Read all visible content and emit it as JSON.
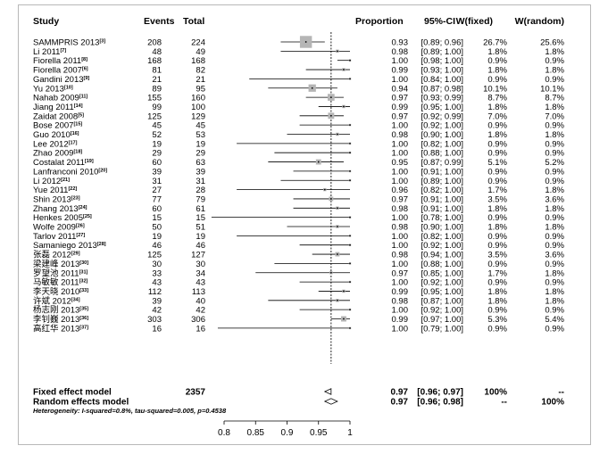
{
  "headers": {
    "study": "Study",
    "events": "Events",
    "total": "Total",
    "proportion": "Proportion",
    "ci": "95%-CI",
    "wfixed": "W(fixed)",
    "wrandom": "W(random)"
  },
  "chart_data": {
    "type": "forest",
    "xlim": [
      0.775,
      1.0
    ],
    "x_ticks": [
      0.8,
      0.85,
      0.9,
      0.95,
      1
    ],
    "x_tick_labels": [
      "0.8",
      "0.85",
      "0.9",
      "0.95",
      "1"
    ],
    "reference_line": 0.97,
    "studies": [
      {
        "name": "SAMMPRIS 2013",
        "ref": "[3]",
        "events": "208",
        "total": "224",
        "prop": 0.93,
        "lo": 0.89,
        "hi": 0.96,
        "prop_text": "0.93",
        "ci_text": "[0.89; 0.96]",
        "wf": "26.7%",
        "wr": "25.6%",
        "weight": 26.7
      },
      {
        "name": "Li 2011",
        "ref": "[7]",
        "events": "48",
        "total": "49",
        "prop": 0.98,
        "lo": 0.89,
        "hi": 1.0,
        "prop_text": "0.98",
        "ci_text": "[0.89; 1.00]",
        "wf": "1.8%",
        "wr": "1.8%",
        "weight": 1.8
      },
      {
        "name": "Fiorella 2011",
        "ref": "[8]",
        "events": "168",
        "total": "168",
        "prop": 1.0,
        "lo": 0.98,
        "hi": 1.0,
        "prop_text": "1.00",
        "ci_text": "[0.98; 1.00]",
        "wf": "0.9%",
        "wr": "0.9%",
        "weight": 0.9
      },
      {
        "name": "Fiorella 2007",
        "ref": "[6]",
        "events": "81",
        "total": "82",
        "prop": 0.99,
        "lo": 0.93,
        "hi": 1.0,
        "prop_text": "0.99",
        "ci_text": "[0.93; 1.00]",
        "wf": "1.8%",
        "wr": "1.8%",
        "weight": 1.8
      },
      {
        "name": "Gandini 2013",
        "ref": "[9]",
        "events": "21",
        "total": "21",
        "prop": 1.0,
        "lo": 0.84,
        "hi": 1.0,
        "prop_text": "1.00",
        "ci_text": "[0.84; 1.00]",
        "wf": "0.9%",
        "wr": "0.9%",
        "weight": 0.9
      },
      {
        "name": "Yu 2013",
        "ref": "[10]",
        "events": "89",
        "total": "95",
        "prop": 0.94,
        "lo": 0.87,
        "hi": 0.98,
        "prop_text": "0.94",
        "ci_text": "[0.87; 0.98]",
        "wf": "10.1%",
        "wr": "10.1%",
        "weight": 10.1
      },
      {
        "name": "Nahab 2009",
        "ref": "[11]",
        "events": "155",
        "total": "160",
        "prop": 0.97,
        "lo": 0.93,
        "hi": 0.99,
        "prop_text": "0.97",
        "ci_text": "[0.93; 0.99]",
        "wf": "8.7%",
        "wr": "8.7%",
        "weight": 8.7
      },
      {
        "name": "Jiang 2011",
        "ref": "[14]",
        "events": "99",
        "total": "100",
        "prop": 0.99,
        "lo": 0.95,
        "hi": 1.0,
        "prop_text": "0.99",
        "ci_text": "[0.95; 1.00]",
        "wf": "1.8%",
        "wr": "1.8%",
        "weight": 1.8
      },
      {
        "name": "Zaidat 2008",
        "ref": "[5]",
        "events": "125",
        "total": "129",
        "prop": 0.97,
        "lo": 0.92,
        "hi": 0.99,
        "prop_text": "0.97",
        "ci_text": "[0.92; 0.99]",
        "wf": "7.0%",
        "wr": "7.0%",
        "weight": 7.0
      },
      {
        "name": "Bose 2007",
        "ref": "[15]",
        "events": "45",
        "total": "45",
        "prop": 1.0,
        "lo": 0.92,
        "hi": 1.0,
        "prop_text": "1.00",
        "ci_text": "[0.92; 1.00]",
        "wf": "0.9%",
        "wr": "0.9%",
        "weight": 0.9
      },
      {
        "name": "Guo 2010",
        "ref": "[16]",
        "events": "52",
        "total": "53",
        "prop": 0.98,
        "lo": 0.9,
        "hi": 1.0,
        "prop_text": "0.98",
        "ci_text": "[0.90; 1.00]",
        "wf": "1.8%",
        "wr": "1.8%",
        "weight": 1.8
      },
      {
        "name": "Lee 2012",
        "ref": "[17]",
        "events": "19",
        "total": "19",
        "prop": 1.0,
        "lo": 0.82,
        "hi": 1.0,
        "prop_text": "1.00",
        "ci_text": "[0.82; 1.00]",
        "wf": "0.9%",
        "wr": "0.9%",
        "weight": 0.9
      },
      {
        "name": "Zhao 2009",
        "ref": "[18]",
        "events": "29",
        "total": "29",
        "prop": 1.0,
        "lo": 0.88,
        "hi": 1.0,
        "prop_text": "1.00",
        "ci_text": "[0.88; 1.00]",
        "wf": "0.9%",
        "wr": "0.9%",
        "weight": 0.9
      },
      {
        "name": "Costalat 2011",
        "ref": "[19]",
        "events": "60",
        "total": "63",
        "prop": 0.95,
        "lo": 0.87,
        "hi": 0.99,
        "prop_text": "0.95",
        "ci_text": "[0.87; 0.99]",
        "wf": "5.1%",
        "wr": "5.2%",
        "weight": 5.1
      },
      {
        "name": "Lanfranconi 2010",
        "ref": "[20]",
        "events": "39",
        "total": "39",
        "prop": 1.0,
        "lo": 0.91,
        "hi": 1.0,
        "prop_text": "1.00",
        "ci_text": "[0.91; 1.00]",
        "wf": "0.9%",
        "wr": "0.9%",
        "weight": 0.9
      },
      {
        "name": "Li 2012",
        "ref": "[21]",
        "events": "31",
        "total": "31",
        "prop": 1.0,
        "lo": 0.89,
        "hi": 1.0,
        "prop_text": "1.00",
        "ci_text": "[0.89; 1.00]",
        "wf": "0.9%",
        "wr": "0.9%",
        "weight": 0.9
      },
      {
        "name": "Yue 2011",
        "ref": "[22]",
        "events": "27",
        "total": "28",
        "prop": 0.96,
        "lo": 0.82,
        "hi": 1.0,
        "prop_text": "0.96",
        "ci_text": "[0.82; 1.00]",
        "wf": "1.7%",
        "wr": "1.8%",
        "weight": 1.7
      },
      {
        "name": "Shin 2013",
        "ref": "[23]",
        "events": "77",
        "total": "79",
        "prop": 0.97,
        "lo": 0.91,
        "hi": 1.0,
        "prop_text": "0.97",
        "ci_text": "[0.91; 1.00]",
        "wf": "3.5%",
        "wr": "3.6%",
        "weight": 3.5
      },
      {
        "name": "Zhang 2013",
        "ref": "[24]",
        "events": "60",
        "total": "61",
        "prop": 0.98,
        "lo": 0.91,
        "hi": 1.0,
        "prop_text": "0.98",
        "ci_text": "[0.91; 1.00]",
        "wf": "1.8%",
        "wr": "1.8%",
        "weight": 1.8
      },
      {
        "name": "Henkes 2005",
        "ref": "[25]",
        "events": "15",
        "total": "15",
        "prop": 1.0,
        "lo": 0.78,
        "hi": 1.0,
        "prop_text": "1.00",
        "ci_text": "[0.78; 1.00]",
        "wf": "0.9%",
        "wr": "0.9%",
        "weight": 0.9
      },
      {
        "name": "Wolfe 2009",
        "ref": "[26]",
        "events": "50",
        "total": "51",
        "prop": 0.98,
        "lo": 0.9,
        "hi": 1.0,
        "prop_text": "0.98",
        "ci_text": "[0.90; 1.00]",
        "wf": "1.8%",
        "wr": "1.8%",
        "weight": 1.8
      },
      {
        "name": "Tarlov 2011",
        "ref": "[27]",
        "events": "19",
        "total": "19",
        "prop": 1.0,
        "lo": 0.82,
        "hi": 1.0,
        "prop_text": "1.00",
        "ci_text": "[0.82; 1.00]",
        "wf": "0.9%",
        "wr": "0.9%",
        "weight": 0.9
      },
      {
        "name": "Samaniego 2013",
        "ref": "[28]",
        "events": "46",
        "total": "46",
        "prop": 1.0,
        "lo": 0.92,
        "hi": 1.0,
        "prop_text": "1.00",
        "ci_text": "[0.92; 1.00]",
        "wf": "0.9%",
        "wr": "0.9%",
        "weight": 0.9
      },
      {
        "name": "张磊 2012",
        "ref": "[29]",
        "events": "125",
        "total": "127",
        "prop": 0.98,
        "lo": 0.94,
        "hi": 1.0,
        "prop_text": "0.98",
        "ci_text": "[0.94; 1.00]",
        "wf": "3.5%",
        "wr": "3.6%",
        "weight": 3.5
      },
      {
        "name": "梁建峰 2013",
        "ref": "[30]",
        "events": "30",
        "total": "30",
        "prop": 1.0,
        "lo": 0.88,
        "hi": 1.0,
        "prop_text": "1.00",
        "ci_text": "[0.88; 1.00]",
        "wf": "0.9%",
        "wr": "0.9%",
        "weight": 0.9
      },
      {
        "name": "罗望池 2011",
        "ref": "[31]",
        "events": "33",
        "total": "34",
        "prop": 0.97,
        "lo": 0.85,
        "hi": 1.0,
        "prop_text": "0.97",
        "ci_text": "[0.85; 1.00]",
        "wf": "1.7%",
        "wr": "1.8%",
        "weight": 1.7
      },
      {
        "name": "马敏敏 2011",
        "ref": "[32]",
        "events": "43",
        "total": "43",
        "prop": 1.0,
        "lo": 0.92,
        "hi": 1.0,
        "prop_text": "1.00",
        "ci_text": "[0.92; 1.00]",
        "wf": "0.9%",
        "wr": "0.9%",
        "weight": 0.9
      },
      {
        "name": "李天晓 2010",
        "ref": "[33]",
        "events": "112",
        "total": "113",
        "prop": 0.99,
        "lo": 0.95,
        "hi": 1.0,
        "prop_text": "0.99",
        "ci_text": "[0.95; 1.00]",
        "wf": "1.8%",
        "wr": "1.8%",
        "weight": 1.8
      },
      {
        "name": "许斌 2012",
        "ref": "[34]",
        "events": "39",
        "total": "40",
        "prop": 0.98,
        "lo": 0.87,
        "hi": 1.0,
        "prop_text": "0.98",
        "ci_text": "[0.87; 1.00]",
        "wf": "1.8%",
        "wr": "1.8%",
        "weight": 1.8
      },
      {
        "name": "杨志刚 2013",
        "ref": "[35]",
        "events": "42",
        "total": "42",
        "prop": 1.0,
        "lo": 0.92,
        "hi": 1.0,
        "prop_text": "1.00",
        "ci_text": "[0.92; 1.00]",
        "wf": "0.9%",
        "wr": "0.9%",
        "weight": 0.9
      },
      {
        "name": "李钊巍 2013",
        "ref": "[36]",
        "events": "303",
        "total": "306",
        "prop": 0.99,
        "lo": 0.97,
        "hi": 1.0,
        "prop_text": "0.99",
        "ci_text": "[0.97; 1.00]",
        "wf": "5.3%",
        "wr": "5.4%",
        "weight": 5.3
      },
      {
        "name": "高红华 2013",
        "ref": "[37]",
        "events": "16",
        "total": "16",
        "prop": 1.0,
        "lo": 0.79,
        "hi": 1.0,
        "prop_text": "1.00",
        "ci_text": "[0.79; 1.00]",
        "wf": "0.9%",
        "wr": "0.9%",
        "weight": 0.9
      }
    ],
    "summary": [
      {
        "label": "Fixed effect model",
        "total": "2357",
        "prop": 0.97,
        "lo": 0.96,
        "hi": 0.97,
        "prop_text": "0.97",
        "ci_text": "[0.96; 0.97]",
        "wf": "100%",
        "wr": "--"
      },
      {
        "label": "Random effects model",
        "total": "",
        "prop": 0.97,
        "lo": 0.96,
        "hi": 0.98,
        "prop_text": "0.97",
        "ci_text": "[0.96; 0.98]",
        "wf": "--",
        "wr": "100%"
      }
    ],
    "heterogeneity": "Heterogeneity: I-squared=0.8%, tau-squared=0.005, p=0.4538"
  }
}
